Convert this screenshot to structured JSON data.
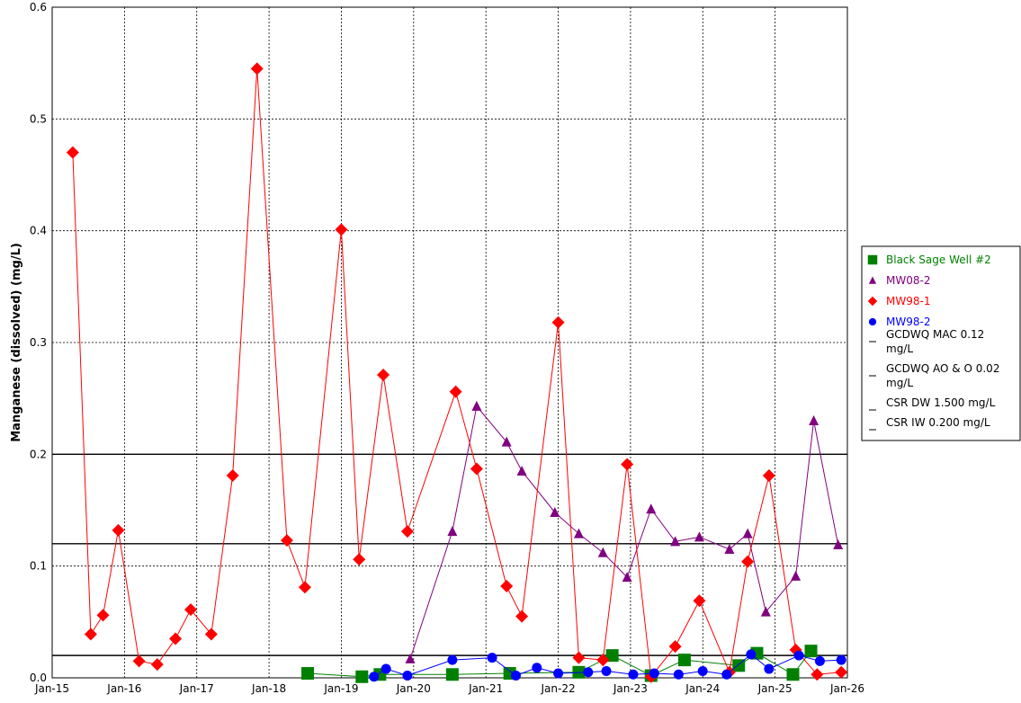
{
  "chart_data": {
    "type": "scatter",
    "title": "",
    "xlabel": "",
    "ylabel": "Manganese (dissolved) (mg/L)",
    "xlim": [
      "2015-01-01",
      "2026-01-01"
    ],
    "ylim": [
      0,
      0.6
    ],
    "yticks": [
      0.0,
      0.1,
      0.2,
      0.3,
      0.4,
      0.5,
      0.6
    ],
    "ytick_labels": [
      "0.0",
      "0.1",
      "0.2",
      "0.3",
      "0.4",
      "0.5",
      "0.6"
    ],
    "xtick_labels": [
      "Jan-15",
      "Jan-16",
      "Jan-17",
      "Jan-18",
      "Jan-19",
      "Jan-20",
      "Jan-21",
      "Jan-22",
      "Jan-23",
      "Jan-24",
      "Jan-25",
      "Jan-26"
    ],
    "grid": true,
    "legend_position": "right",
    "series": [
      {
        "name": "Black Sage Well #2",
        "marker": "square",
        "color": "#008000",
        "points": [
          [
            "2018-07-15",
            0.004
          ],
          [
            "2019-04-15",
            0.001
          ],
          [
            "2019-07-15",
            0.003
          ],
          [
            "2020-07-15",
            0.003
          ],
          [
            "2021-05-01",
            0.004
          ],
          [
            "2022-04-15",
            0.005
          ],
          [
            "2022-10-01",
            0.02
          ],
          [
            "2023-04-15",
            0.002
          ],
          [
            "2023-10-01",
            0.016
          ],
          [
            "2024-07-01",
            0.011
          ],
          [
            "2024-10-01",
            0.022
          ],
          [
            "2025-04-01",
            0.003
          ],
          [
            "2025-07-01",
            0.024
          ]
        ]
      },
      {
        "name": "MW08-2",
        "marker": "triangle",
        "color": "#800080",
        "points": [
          [
            "2019-12-15",
            0.017
          ],
          [
            "2020-07-15",
            0.131
          ],
          [
            "2020-11-15",
            0.243
          ],
          [
            "2021-04-15",
            0.211
          ],
          [
            "2021-07-01",
            0.185
          ],
          [
            "2021-12-15",
            0.148
          ],
          [
            "2022-04-15",
            0.129
          ],
          [
            "2022-08-15",
            0.112
          ],
          [
            "2022-12-15",
            0.09
          ],
          [
            "2023-04-15",
            0.151
          ],
          [
            "2023-08-15",
            0.122
          ],
          [
            "2023-12-15",
            0.126
          ],
          [
            "2024-05-15",
            0.115
          ],
          [
            "2024-08-15",
            0.129
          ],
          [
            "2024-11-15",
            0.059
          ],
          [
            "2025-04-15",
            0.091
          ],
          [
            "2025-07-15",
            0.23
          ],
          [
            "2025-11-15",
            0.119
          ]
        ]
      },
      {
        "name": "MW98-1",
        "marker": "diamond",
        "color": "#ff0000",
        "points": [
          [
            "2015-04-15",
            0.47
          ],
          [
            "2015-07-15",
            0.039
          ],
          [
            "2015-09-15",
            0.056
          ],
          [
            "2015-12-01",
            0.132
          ],
          [
            "2016-03-15",
            0.015
          ],
          [
            "2016-06-15",
            0.012
          ],
          [
            "2016-09-15",
            0.035
          ],
          [
            "2016-12-01",
            0.061
          ],
          [
            "2017-03-15",
            0.039
          ],
          [
            "2017-07-01",
            0.181
          ],
          [
            "2017-11-01",
            0.545
          ],
          [
            "2018-04-01",
            0.123
          ],
          [
            "2018-07-01",
            0.081
          ],
          [
            "2019-01-01",
            0.401
          ],
          [
            "2019-04-01",
            0.106
          ],
          [
            "2019-08-01",
            0.271
          ],
          [
            "2019-12-01",
            0.131
          ],
          [
            "2020-08-01",
            0.256
          ],
          [
            "2020-11-15",
            0.187
          ],
          [
            "2021-04-15",
            0.082
          ],
          [
            "2021-07-01",
            0.055
          ],
          [
            "2022-01-01",
            0.318
          ],
          [
            "2022-04-15",
            0.018
          ],
          [
            "2022-08-15",
            0.016
          ],
          [
            "2022-12-15",
            0.191
          ],
          [
            "2023-04-15",
            0.001
          ],
          [
            "2023-08-15",
            0.028
          ],
          [
            "2023-12-15",
            0.069
          ],
          [
            "2024-05-15",
            0.005
          ],
          [
            "2024-08-15",
            0.104
          ],
          [
            "2024-12-01",
            0.181
          ],
          [
            "2025-04-15",
            0.025
          ],
          [
            "2025-08-01",
            0.003
          ],
          [
            "2025-12-01",
            0.005
          ]
        ]
      },
      {
        "name": "MW98-2",
        "marker": "circle",
        "color": "#0000ff",
        "points": [
          [
            "2019-06-15",
            0.001
          ],
          [
            "2019-08-15",
            0.008
          ],
          [
            "2019-12-01",
            0.002
          ],
          [
            "2020-07-15",
            0.016
          ],
          [
            "2021-02-01",
            0.018
          ],
          [
            "2021-06-01",
            0.002
          ],
          [
            "2021-09-15",
            0.009
          ],
          [
            "2022-01-01",
            0.004
          ],
          [
            "2022-06-01",
            0.005
          ],
          [
            "2022-09-01",
            0.006
          ],
          [
            "2023-01-15",
            0.003
          ],
          [
            "2023-05-01",
            0.004
          ],
          [
            "2023-09-01",
            0.003
          ],
          [
            "2024-01-01",
            0.006
          ],
          [
            "2024-05-01",
            0.003
          ],
          [
            "2024-09-01",
            0.021
          ],
          [
            "2024-12-01",
            0.008
          ],
          [
            "2025-05-01",
            0.02
          ],
          [
            "2025-08-15",
            0.015
          ],
          [
            "2025-12-01",
            0.016
          ]
        ]
      }
    ],
    "reference_lines": [
      {
        "name": "GCDWQ MAC 0.12 mg/L",
        "value": 0.12,
        "color": "#000000"
      },
      {
        "name": "GCDWQ AO & O 0.02 mg/L",
        "value": 0.02,
        "color": "#000000"
      },
      {
        "name": "CSR DW 1.500 mg/L",
        "value": 1.5,
        "color": "#000000"
      },
      {
        "name": "CSR IW 0.200 mg/L",
        "value": 0.2,
        "color": "#000000"
      }
    ]
  }
}
